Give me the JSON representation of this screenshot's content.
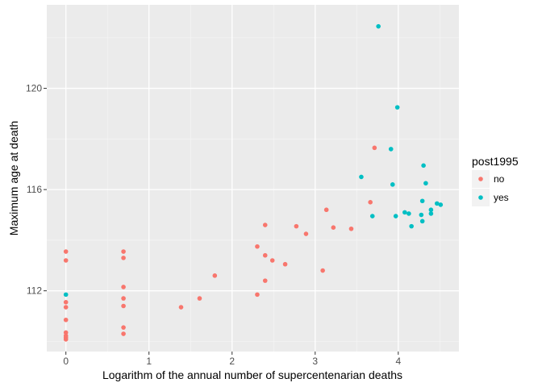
{
  "chart_data": {
    "type": "scatter",
    "xlabel": "Logarithm of the annual number of supercentenarian deaths",
    "ylabel": "Maximum age at death",
    "xlim": [
      -0.23,
      4.73
    ],
    "ylim": [
      109.6,
      123.3
    ],
    "x_ticks": [
      0,
      1,
      2,
      3,
      4
    ],
    "x_tick_labels": [
      "0",
      "1",
      "2",
      "3",
      "4"
    ],
    "y_ticks": [
      112,
      116,
      120
    ],
    "y_tick_labels": [
      "112",
      "116",
      "120"
    ],
    "grid": true,
    "legend": {
      "title": "post1995",
      "position": "right",
      "entries": [
        {
          "label": "no",
          "color": "#F8766D"
        },
        {
          "label": "yes",
          "color": "#00BFC4"
        }
      ]
    },
    "series": [
      {
        "name": "no",
        "color": "#F8766D",
        "points": [
          [
            0,
            113.55
          ],
          [
            0,
            113.2
          ],
          [
            0,
            111.55
          ],
          [
            0,
            111.35
          ],
          [
            0,
            110.85
          ],
          [
            0,
            110.35
          ],
          [
            0,
            110.22
          ],
          [
            0,
            110.15
          ],
          [
            0,
            110.08
          ],
          [
            0.693,
            113.55
          ],
          [
            0.693,
            113.3
          ],
          [
            0.693,
            112.15
          ],
          [
            0.693,
            111.7
          ],
          [
            0.693,
            111.4
          ],
          [
            0.693,
            110.55
          ],
          [
            0.693,
            110.3
          ],
          [
            1.386,
            111.35
          ],
          [
            1.609,
            111.7
          ],
          [
            1.792,
            112.6
          ],
          [
            2.303,
            113.75
          ],
          [
            2.303,
            111.85
          ],
          [
            2.398,
            114.6
          ],
          [
            2.398,
            113.4
          ],
          [
            2.398,
            112.4
          ],
          [
            2.485,
            113.2
          ],
          [
            2.639,
            113.05
          ],
          [
            2.773,
            114.55
          ],
          [
            2.89,
            114.25
          ],
          [
            3.091,
            112.8
          ],
          [
            3.135,
            115.2
          ],
          [
            3.219,
            114.5
          ],
          [
            3.434,
            114.45
          ],
          [
            3.664,
            115.5
          ],
          [
            3.714,
            117.65
          ]
        ]
      },
      {
        "name": "yes",
        "color": "#00BFC4",
        "points": [
          [
            0,
            111.85
          ],
          [
            3.555,
            116.5
          ],
          [
            3.689,
            114.95
          ],
          [
            3.761,
            122.45
          ],
          [
            3.912,
            117.6
          ],
          [
            3.932,
            116.2
          ],
          [
            3.97,
            114.95
          ],
          [
            3.989,
            119.25
          ],
          [
            4.078,
            115.1
          ],
          [
            4.127,
            115.05
          ],
          [
            4.159,
            114.55
          ],
          [
            4.277,
            115.0
          ],
          [
            4.29,
            114.75
          ],
          [
            4.29,
            115.55
          ],
          [
            4.304,
            116.95
          ],
          [
            4.331,
            116.25
          ],
          [
            4.394,
            115.2
          ],
          [
            4.394,
            115.05
          ],
          [
            4.466,
            115.45
          ],
          [
            4.51,
            115.4
          ]
        ]
      }
    ]
  }
}
